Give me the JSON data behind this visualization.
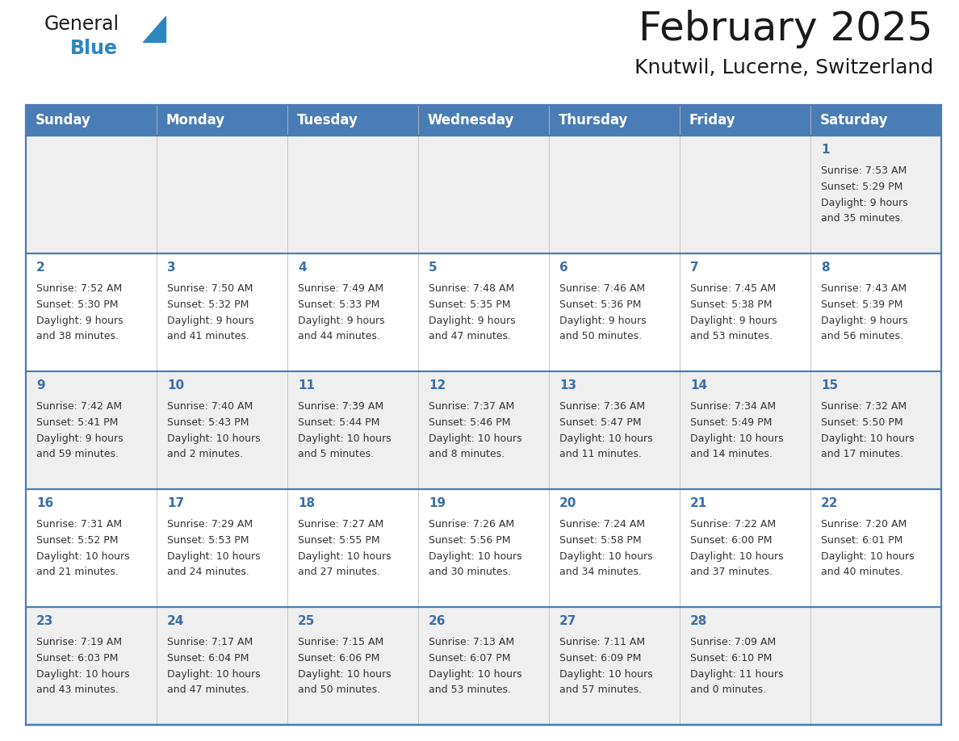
{
  "title": "February 2025",
  "subtitle": "Knutwil, Lucerne, Switzerland",
  "days_of_week": [
    "Sunday",
    "Monday",
    "Tuesday",
    "Wednesday",
    "Thursday",
    "Friday",
    "Saturday"
  ],
  "header_bg": "#4A7DB5",
  "header_text": "#FFFFFF",
  "row_bg_even": "#EFEFEF",
  "row_bg_odd": "#FFFFFF",
  "day_num_color": "#3A6EA8",
  "cell_text_color": "#333333",
  "border_color": "#4A7DB5",
  "logo_text_color": "#1a1a1a",
  "logo_blue_color": "#2E86C1",
  "title_fontsize": 36,
  "subtitle_fontsize": 18,
  "header_fontsize": 12,
  "day_num_fontsize": 11,
  "cell_fontsize": 9,
  "calendar_data": [
    [
      null,
      null,
      null,
      null,
      null,
      null,
      {
        "day": "1",
        "sunrise": "7:53 AM",
        "sunset": "5:29 PM",
        "daylight": "9 hours and 35 minutes."
      }
    ],
    [
      {
        "day": "2",
        "sunrise": "7:52 AM",
        "sunset": "5:30 PM",
        "daylight": "9 hours and 38 minutes."
      },
      {
        "day": "3",
        "sunrise": "7:50 AM",
        "sunset": "5:32 PM",
        "daylight": "9 hours and 41 minutes."
      },
      {
        "day": "4",
        "sunrise": "7:49 AM",
        "sunset": "5:33 PM",
        "daylight": "9 hours and 44 minutes."
      },
      {
        "day": "5",
        "sunrise": "7:48 AM",
        "sunset": "5:35 PM",
        "daylight": "9 hours and 47 minutes."
      },
      {
        "day": "6",
        "sunrise": "7:46 AM",
        "sunset": "5:36 PM",
        "daylight": "9 hours and 50 minutes."
      },
      {
        "day": "7",
        "sunrise": "7:45 AM",
        "sunset": "5:38 PM",
        "daylight": "9 hours and 53 minutes."
      },
      {
        "day": "8",
        "sunrise": "7:43 AM",
        "sunset": "5:39 PM",
        "daylight": "9 hours and 56 minutes."
      }
    ],
    [
      {
        "day": "9",
        "sunrise": "7:42 AM",
        "sunset": "5:41 PM",
        "daylight": "9 hours and 59 minutes."
      },
      {
        "day": "10",
        "sunrise": "7:40 AM",
        "sunset": "5:43 PM",
        "daylight": "10 hours and 2 minutes."
      },
      {
        "day": "11",
        "sunrise": "7:39 AM",
        "sunset": "5:44 PM",
        "daylight": "10 hours and 5 minutes."
      },
      {
        "day": "12",
        "sunrise": "7:37 AM",
        "sunset": "5:46 PM",
        "daylight": "10 hours and 8 minutes."
      },
      {
        "day": "13",
        "sunrise": "7:36 AM",
        "sunset": "5:47 PM",
        "daylight": "10 hours and 11 minutes."
      },
      {
        "day": "14",
        "sunrise": "7:34 AM",
        "sunset": "5:49 PM",
        "daylight": "10 hours and 14 minutes."
      },
      {
        "day": "15",
        "sunrise": "7:32 AM",
        "sunset": "5:50 PM",
        "daylight": "10 hours and 17 minutes."
      }
    ],
    [
      {
        "day": "16",
        "sunrise": "7:31 AM",
        "sunset": "5:52 PM",
        "daylight": "10 hours and 21 minutes."
      },
      {
        "day": "17",
        "sunrise": "7:29 AM",
        "sunset": "5:53 PM",
        "daylight": "10 hours and 24 minutes."
      },
      {
        "day": "18",
        "sunrise": "7:27 AM",
        "sunset": "5:55 PM",
        "daylight": "10 hours and 27 minutes."
      },
      {
        "day": "19",
        "sunrise": "7:26 AM",
        "sunset": "5:56 PM",
        "daylight": "10 hours and 30 minutes."
      },
      {
        "day": "20",
        "sunrise": "7:24 AM",
        "sunset": "5:58 PM",
        "daylight": "10 hours and 34 minutes."
      },
      {
        "day": "21",
        "sunrise": "7:22 AM",
        "sunset": "6:00 PM",
        "daylight": "10 hours and 37 minutes."
      },
      {
        "day": "22",
        "sunrise": "7:20 AM",
        "sunset": "6:01 PM",
        "daylight": "10 hours and 40 minutes."
      }
    ],
    [
      {
        "day": "23",
        "sunrise": "7:19 AM",
        "sunset": "6:03 PM",
        "daylight": "10 hours and 43 minutes."
      },
      {
        "day": "24",
        "sunrise": "7:17 AM",
        "sunset": "6:04 PM",
        "daylight": "10 hours and 47 minutes."
      },
      {
        "day": "25",
        "sunrise": "7:15 AM",
        "sunset": "6:06 PM",
        "daylight": "10 hours and 50 minutes."
      },
      {
        "day": "26",
        "sunrise": "7:13 AM",
        "sunset": "6:07 PM",
        "daylight": "10 hours and 53 minutes."
      },
      {
        "day": "27",
        "sunrise": "7:11 AM",
        "sunset": "6:09 PM",
        "daylight": "10 hours and 57 minutes."
      },
      {
        "day": "28",
        "sunrise": "7:09 AM",
        "sunset": "6:10 PM",
        "daylight": "11 hours and 0 minutes."
      },
      null
    ]
  ]
}
